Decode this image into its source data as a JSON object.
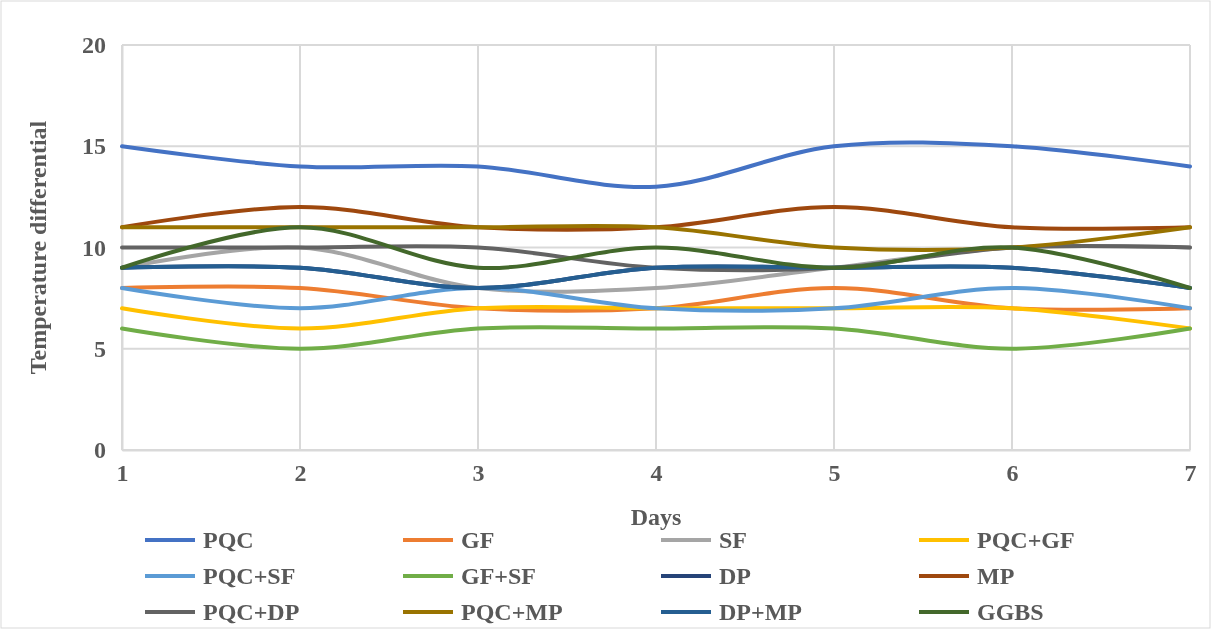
{
  "chart_data": {
    "type": "line",
    "xlabel": "Days",
    "ylabel": "Temperature differential",
    "x": [
      1,
      2,
      3,
      4,
      5,
      6,
      7
    ],
    "xlim": [
      1,
      7
    ],
    "xticks": [
      1,
      2,
      3,
      4,
      5,
      6,
      7
    ],
    "ylim": [
      0,
      20
    ],
    "yticks": [
      0,
      5,
      10,
      15,
      20
    ],
    "grid": true,
    "legend": "bottom",
    "marker": "none",
    "line_style": "solid",
    "series": [
      {
        "name": "PQC",
        "color": "#4472c4",
        "values": [
          15,
          14,
          14,
          13,
          15,
          15,
          14
        ]
      },
      {
        "name": "GF",
        "color": "#ed7d31",
        "values": [
          8,
          8,
          7,
          7,
          8,
          7,
          7
        ]
      },
      {
        "name": "SF",
        "color": "#a5a5a5",
        "values": [
          9,
          10,
          8,
          8,
          9,
          10,
          10
        ]
      },
      {
        "name": "PQC+GF",
        "color": "#ffc000",
        "values": [
          7,
          6,
          7,
          7,
          7,
          7,
          6
        ]
      },
      {
        "name": "PQC+SF",
        "color": "#5b9bd5",
        "values": [
          8,
          7,
          8,
          7,
          7,
          8,
          7
        ]
      },
      {
        "name": "GF+SF",
        "color": "#70ad47",
        "values": [
          6,
          5,
          6,
          6,
          6,
          5,
          6
        ]
      },
      {
        "name": "DP",
        "color": "#264478",
        "values": [
          9,
          9,
          8,
          9,
          9,
          9,
          8
        ]
      },
      {
        "name": "MP",
        "color": "#9e480e",
        "values": [
          11,
          12,
          11,
          11,
          12,
          11,
          11
        ]
      },
      {
        "name": "PQC+DP",
        "color": "#636363",
        "values": [
          10,
          10,
          10,
          9,
          9,
          10,
          10
        ]
      },
      {
        "name": "PQC+MP",
        "color": "#997300",
        "values": [
          11,
          11,
          11,
          11,
          10,
          10,
          11
        ]
      },
      {
        "name": "DP+MP",
        "color": "#255e91",
        "values": [
          9,
          9,
          8,
          9,
          9,
          9,
          8
        ]
      },
      {
        "name": "GGBS",
        "color": "#43682b",
        "values": [
          9,
          11,
          9,
          10,
          9,
          10,
          8
        ]
      }
    ]
  }
}
